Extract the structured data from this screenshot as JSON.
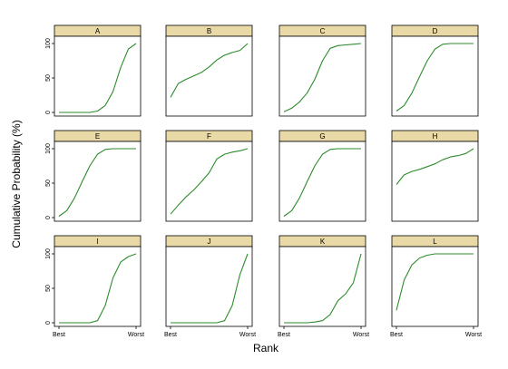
{
  "chart_data": {
    "type": "line",
    "xlabel": "Rank",
    "ylabel": "Cumulative Probability (%)",
    "x_tick_labels": [
      "Best",
      "Worst"
    ],
    "y_ticks": [
      "0",
      "50",
      "100"
    ],
    "ylim": [
      0,
      100
    ],
    "xlim": [
      0,
      1
    ],
    "grid": false,
    "legend": "none",
    "colors": {
      "line": "#2e8b2e",
      "strip_fill": "#e8d9a6",
      "panel_border": "#000000"
    },
    "panels": [
      {
        "label": "A",
        "x": [
          0,
          0.1,
          0.2,
          0.3,
          0.4,
          0.5,
          0.6,
          0.7,
          0.8,
          0.9,
          1.0
        ],
        "y": [
          0,
          0,
          0,
          0,
          0,
          2,
          10,
          30,
          65,
          92,
          100
        ]
      },
      {
        "label": "B",
        "x": [
          0,
          0.1,
          0.2,
          0.3,
          0.4,
          0.5,
          0.6,
          0.7,
          0.8,
          0.9,
          1.0
        ],
        "y": [
          22,
          42,
          48,
          53,
          58,
          66,
          76,
          83,
          87,
          90,
          100
        ]
      },
      {
        "label": "C",
        "x": [
          0,
          0.1,
          0.2,
          0.3,
          0.4,
          0.5,
          0.6,
          0.7,
          0.8,
          0.9,
          1.0
        ],
        "y": [
          1,
          6,
          15,
          28,
          48,
          75,
          93,
          97,
          98,
          99,
          100
        ]
      },
      {
        "label": "D",
        "x": [
          0,
          0.1,
          0.2,
          0.3,
          0.4,
          0.5,
          0.6,
          0.7,
          0.8,
          0.9,
          1.0
        ],
        "y": [
          2,
          10,
          28,
          52,
          75,
          92,
          99,
          100,
          100,
          100,
          100
        ]
      },
      {
        "label": "E",
        "x": [
          0,
          0.1,
          0.2,
          0.3,
          0.4,
          0.5,
          0.6,
          0.7,
          0.8,
          0.9,
          1.0
        ],
        "y": [
          2,
          10,
          28,
          52,
          75,
          92,
          99,
          100,
          100,
          100,
          100
        ]
      },
      {
        "label": "F",
        "x": [
          0,
          0.1,
          0.2,
          0.3,
          0.4,
          0.5,
          0.6,
          0.7,
          0.8,
          0.9,
          1.0
        ],
        "y": [
          5,
          18,
          30,
          40,
          52,
          65,
          85,
          92,
          95,
          97,
          100
        ]
      },
      {
        "label": "G",
        "x": [
          0,
          0.1,
          0.2,
          0.3,
          0.4,
          0.5,
          0.6,
          0.7,
          0.8,
          0.9,
          1.0
        ],
        "y": [
          2,
          10,
          28,
          52,
          75,
          92,
          99,
          100,
          100,
          100,
          100
        ]
      },
      {
        "label": "H",
        "x": [
          0,
          0.1,
          0.2,
          0.3,
          0.4,
          0.5,
          0.6,
          0.7,
          0.8,
          0.9,
          1.0
        ],
        "y": [
          48,
          62,
          67,
          70,
          74,
          78,
          84,
          88,
          90,
          93,
          100
        ]
      },
      {
        "label": "I",
        "x": [
          0,
          0.1,
          0.2,
          0.3,
          0.4,
          0.5,
          0.6,
          0.7,
          0.8,
          0.9,
          1.0
        ],
        "y": [
          0,
          0,
          0,
          0,
          0,
          3,
          25,
          65,
          88,
          96,
          100
        ]
      },
      {
        "label": "J",
        "x": [
          0,
          0.1,
          0.2,
          0.3,
          0.4,
          0.5,
          0.6,
          0.7,
          0.8,
          0.9,
          1.0
        ],
        "y": [
          0,
          0,
          0,
          0,
          0,
          0,
          0,
          3,
          25,
          70,
          100
        ]
      },
      {
        "label": "K",
        "x": [
          0,
          0.1,
          0.2,
          0.3,
          0.4,
          0.5,
          0.6,
          0.7,
          0.8,
          0.9,
          1.0
        ],
        "y": [
          0,
          0,
          0,
          0,
          1,
          3,
          12,
          32,
          42,
          58,
          100
        ]
      },
      {
        "label": "L",
        "x": [
          0,
          0.1,
          0.2,
          0.3,
          0.4,
          0.5,
          0.6,
          0.7,
          0.8,
          0.9,
          1.0
        ],
        "y": [
          18,
          62,
          84,
          94,
          98,
          100,
          100,
          100,
          100,
          100,
          100
        ]
      }
    ]
  }
}
